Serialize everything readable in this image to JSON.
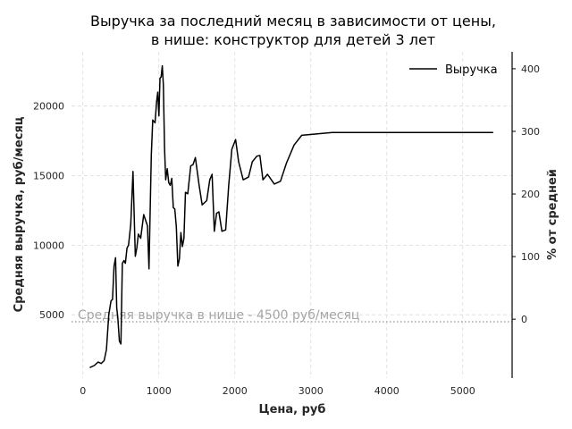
{
  "chart_data": {
    "type": "line",
    "title": [
      "Выручка за последний месяц в зависимости от цены,",
      "в нише: конструктор для детей 3 лет"
    ],
    "xlabel": "Цена, руб",
    "ylabel": "Средняя выручка, руб/месяц",
    "y2label": "% от средней",
    "xlim": [
      -150,
      5650
    ],
    "ylim": [
      450,
      23900
    ],
    "y2lim": [
      -94,
      427
    ],
    "x_ticks": [
      0,
      1000,
      2000,
      3000,
      4000,
      5000
    ],
    "y_ticks": [
      5000,
      10000,
      15000,
      20000
    ],
    "y2_ticks": [
      0,
      100,
      200,
      300,
      400
    ],
    "grid": true,
    "legend_position": "top-right",
    "series": [
      {
        "name": "Выручка",
        "color": "#000000",
        "x": [
          90,
          150,
          200,
          240,
          280,
          310,
          340,
          370,
          390,
          410,
          430,
          445,
          460,
          480,
          500,
          520,
          540,
          560,
          580,
          600,
          630,
          660,
          690,
          710,
          730,
          760,
          800,
          850,
          870,
          900,
          920,
          950,
          970,
          985,
          1000,
          1015,
          1030,
          1045,
          1060,
          1075,
          1090,
          1110,
          1130,
          1150,
          1170,
          1190,
          1210,
          1230,
          1250,
          1270,
          1290,
          1310,
          1330,
          1350,
          1380,
          1420,
          1450,
          1480,
          1530,
          1570,
          1630,
          1670,
          1700,
          1730,
          1760,
          1790,
          1830,
          1880,
          1920,
          1960,
          2010,
          2050,
          2110,
          2180,
          2230,
          2290,
          2330,
          2370,
          2430,
          2520,
          2600,
          2680,
          2780,
          2880,
          3280,
          3620,
          3720,
          3950,
          4150,
          4400,
          4900,
          5400
        ],
        "y": [
          1200,
          1350,
          1600,
          1500,
          1700,
          2500,
          5000,
          6000,
          6100,
          8500,
          9100,
          5500,
          4800,
          3100,
          2900,
          8700,
          8900,
          8700,
          9800,
          10000,
          11500,
          15300,
          9200,
          9800,
          10800,
          10500,
          12200,
          11400,
          8300,
          16500,
          19000,
          18800,
          20300,
          21000,
          19300,
          22000,
          22100,
          22900,
          21500,
          17000,
          14700,
          15500,
          14500,
          14300,
          14800,
          12700,
          12600,
          11300,
          8500,
          9000,
          10900,
          9900,
          10500,
          13800,
          13700,
          15700,
          15800,
          16300,
          14300,
          12900,
          13200,
          14700,
          15100,
          11000,
          12300,
          12400,
          11000,
          11100,
          14300,
          16900,
          17600,
          16000,
          14700,
          14900,
          16000,
          16400,
          16450,
          14700,
          15100,
          14400,
          14600,
          15900,
          17200,
          17900,
          18100,
          18100,
          18100,
          18100,
          18100,
          18100,
          18100,
          18100
        ]
      }
    ],
    "reference_line": {
      "value": 4500,
      "label": "Средняя выручка в нише - 4500 руб/месяц",
      "color": "#a6a6a6"
    }
  }
}
